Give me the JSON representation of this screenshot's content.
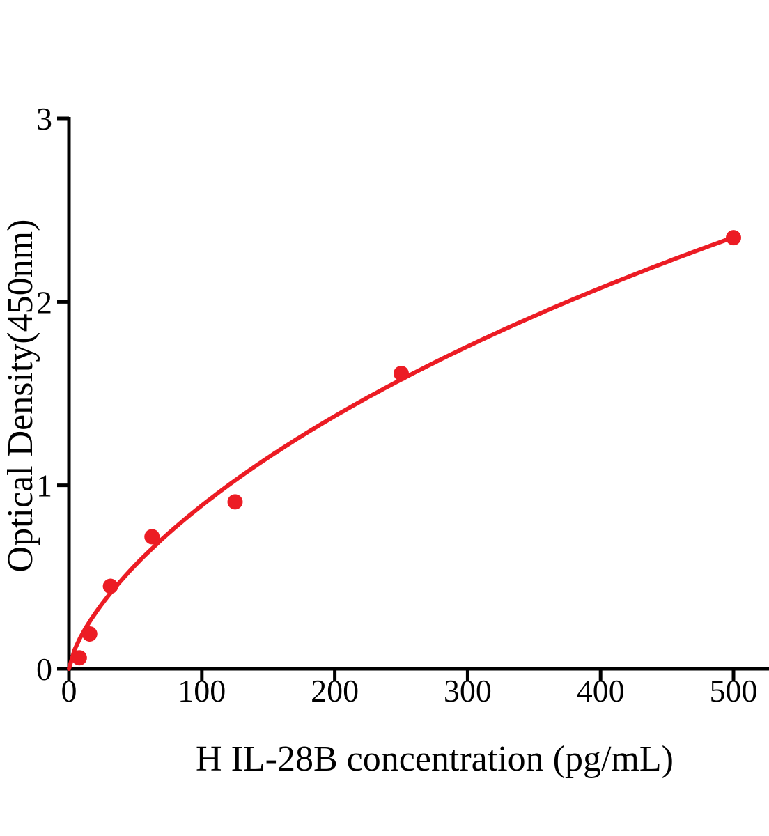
{
  "figure": {
    "background": "#ffffff"
  },
  "chart_data": {
    "type": "scatter",
    "title": "",
    "xlabel": "H IL-28B concentration (pg/mL)",
    "ylabel": "Optical Density(450nm)",
    "x_ticks": [
      0,
      100,
      200,
      300,
      400,
      500
    ],
    "y_ticks": [
      0,
      1,
      2,
      3
    ],
    "xlim": [
      0,
      527
    ],
    "ylim": [
      0,
      3
    ],
    "grid": false,
    "legend": null,
    "axis_color": "#000000",
    "series": [
      {
        "color": "#ec1c24",
        "marker": "circle",
        "points": [
          {
            "x": 7.8,
            "y": 0.06
          },
          {
            "x": 15.6,
            "y": 0.19
          },
          {
            "x": 31.25,
            "y": 0.45
          },
          {
            "x": 62.5,
            "y": 0.72
          },
          {
            "x": 125,
            "y": 0.91
          },
          {
            "x": 250,
            "y": 1.61
          },
          {
            "x": 500,
            "y": 2.35
          }
        ],
        "fit_curve": {
          "model": "y = d * x^b / (k + x^b)",
          "d": 11.05,
          "b": 0.7,
          "k": 286.6,
          "x_range": [
            0,
            500
          ]
        }
      }
    ]
  }
}
